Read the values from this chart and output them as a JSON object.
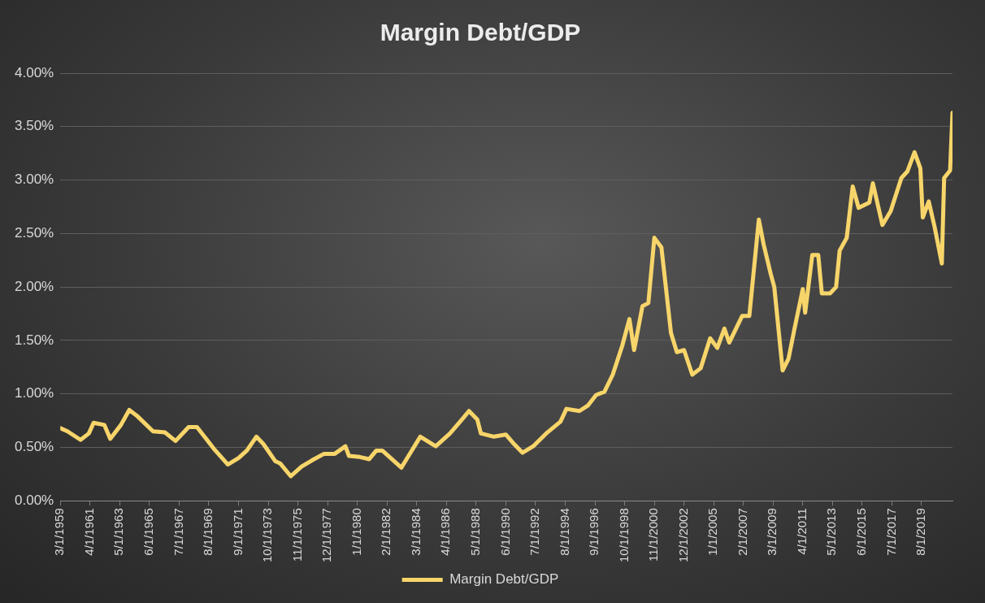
{
  "chart_data": {
    "type": "line",
    "title": "Margin Debt/GDP",
    "x": [
      "1959-03",
      "1959-09",
      "1960-08",
      "1961-03",
      "1961-07",
      "1962-04",
      "1962-09",
      "1963-06",
      "1964-01",
      "1964-08",
      "1965-09",
      "1966-07",
      "1967-04",
      "1968-03",
      "1968-10",
      "1969-12",
      "1970-12",
      "1971-09",
      "1972-04",
      "1972-12",
      "1973-06",
      "1974-04",
      "1974-08",
      "1975-05",
      "1976-02",
      "1976-11",
      "1977-09",
      "1978-06",
      "1979-03",
      "1979-06",
      "1980-03",
      "1980-11",
      "1981-05",
      "1981-10",
      "1983-02",
      "1984-06",
      "1985-07",
      "1986-07",
      "1987-05",
      "1987-11",
      "1988-06",
      "1988-09",
      "1989-08",
      "1990-06",
      "1991-01",
      "1991-08",
      "1992-05",
      "1993-05",
      "1994-04",
      "1994-09",
      "1995-08",
      "1996-03",
      "1996-10",
      "1997-05",
      "1997-12",
      "1998-08",
      "1999-02",
      "1999-06",
      "2000-01",
      "2000-06",
      "2000-11",
      "2001-05",
      "2002-01",
      "2002-06",
      "2002-12",
      "2003-07",
      "2004-02",
      "2004-10",
      "2005-04",
      "2005-10",
      "2006-02",
      "2007-01",
      "2007-07",
      "2008-03",
      "2008-07",
      "2009-01",
      "2009-04",
      "2009-11",
      "2010-04",
      "2010-09",
      "2011-04",
      "2011-06",
      "2011-12",
      "2012-05",
      "2012-08",
      "2013-03",
      "2013-08",
      "2013-11",
      "2014-05",
      "2014-10",
      "2015-03",
      "2015-12",
      "2016-03",
      "2016-11",
      "2017-06",
      "2018-03",
      "2018-08",
      "2019-02",
      "2019-07",
      "2019-09",
      "2020-02",
      "2020-07",
      "2021-01",
      "2021-03",
      "2021-08",
      "2021-10"
    ],
    "series": [
      {
        "name": "Margin Debt/GDP",
        "color": "#f7d56a",
        "values": [
          0.68,
          0.65,
          0.57,
          0.63,
          0.73,
          0.71,
          0.58,
          0.71,
          0.85,
          0.79,
          0.65,
          0.64,
          0.56,
          0.69,
          0.69,
          0.49,
          0.34,
          0.4,
          0.47,
          0.6,
          0.53,
          0.37,
          0.35,
          0.23,
          0.32,
          0.38,
          0.44,
          0.44,
          0.51,
          0.42,
          0.41,
          0.39,
          0.47,
          0.47,
          0.31,
          0.6,
          0.51,
          0.63,
          0.76,
          0.84,
          0.76,
          0.63,
          0.6,
          0.62,
          0.53,
          0.45,
          0.51,
          0.64,
          0.74,
          0.86,
          0.84,
          0.89,
          0.99,
          1.02,
          1.18,
          1.45,
          1.7,
          1.41,
          1.82,
          1.85,
          2.46,
          2.37,
          1.57,
          1.39,
          1.41,
          1.18,
          1.24,
          1.52,
          1.43,
          1.61,
          1.48,
          1.73,
          1.73,
          2.63,
          2.4,
          2.12,
          2.0,
          1.22,
          1.33,
          1.61,
          1.98,
          1.76,
          2.3,
          2.3,
          1.94,
          1.94,
          2.0,
          2.34,
          2.46,
          2.94,
          2.74,
          2.79,
          2.97,
          2.58,
          2.71,
          3.02,
          3.08,
          3.26,
          3.11,
          2.65,
          2.8,
          2.56,
          2.22,
          3.02,
          3.09,
          3.63
        ]
      }
    ],
    "xlim": [
      "1959-03",
      "2021-10"
    ],
    "xticks": [
      {
        "value": "1959-03",
        "label": "3/1/1959"
      },
      {
        "value": "1961-04",
        "label": "4/1/1961"
      },
      {
        "value": "1963-05",
        "label": "5/1/1963"
      },
      {
        "value": "1965-06",
        "label": "6/1/1965"
      },
      {
        "value": "1967-07",
        "label": "7/1/1967"
      },
      {
        "value": "1969-08",
        "label": "8/1/1969"
      },
      {
        "value": "1971-09",
        "label": "9/1/1971"
      },
      {
        "value": "1973-10",
        "label": "10/1/1973"
      },
      {
        "value": "1975-11",
        "label": "11/1/1975"
      },
      {
        "value": "1977-12",
        "label": "12/1/1977"
      },
      {
        "value": "1980-01",
        "label": "1/1/1980"
      },
      {
        "value": "1982-02",
        "label": "2/1/1982"
      },
      {
        "value": "1984-03",
        "label": "3/1/1984"
      },
      {
        "value": "1986-04",
        "label": "4/1/1986"
      },
      {
        "value": "1988-05",
        "label": "5/1/1988"
      },
      {
        "value": "1990-06",
        "label": "6/1/1990"
      },
      {
        "value": "1992-07",
        "label": "7/1/1992"
      },
      {
        "value": "1994-08",
        "label": "8/1/1994"
      },
      {
        "value": "1996-09",
        "label": "9/1/1996"
      },
      {
        "value": "1998-10",
        "label": "10/1/1998"
      },
      {
        "value": "2000-11",
        "label": "11/1/2000"
      },
      {
        "value": "2002-12",
        "label": "12/1/2002"
      },
      {
        "value": "2005-01",
        "label": "1/1/2005"
      },
      {
        "value": "2007-02",
        "label": "2/1/2007"
      },
      {
        "value": "2009-03",
        "label": "3/1/2009"
      },
      {
        "value": "2011-04",
        "label": "4/1/2011"
      },
      {
        "value": "2013-05",
        "label": "5/1/2013"
      },
      {
        "value": "2015-06",
        "label": "6/1/2015"
      },
      {
        "value": "2017-07",
        "label": "7/1/2017"
      },
      {
        "value": "2019-08",
        "label": "8/1/2019"
      }
    ],
    "ylim": [
      0,
      4
    ],
    "yticks": [
      {
        "value": 0,
        "label": "0.00%"
      },
      {
        "value": 0.5,
        "label": "0.50%"
      },
      {
        "value": 1,
        "label": "1.00%"
      },
      {
        "value": 1.5,
        "label": "1.50%"
      },
      {
        "value": 2,
        "label": "2.00%"
      },
      {
        "value": 2.5,
        "label": "2.50%"
      },
      {
        "value": 3,
        "label": "3.00%"
      },
      {
        "value": 3.5,
        "label": "3.50%"
      },
      {
        "value": 4,
        "label": "4.00%"
      }
    ],
    "grid": "y",
    "legend": "bottom",
    "marker": "none",
    "line_style": "solid"
  }
}
